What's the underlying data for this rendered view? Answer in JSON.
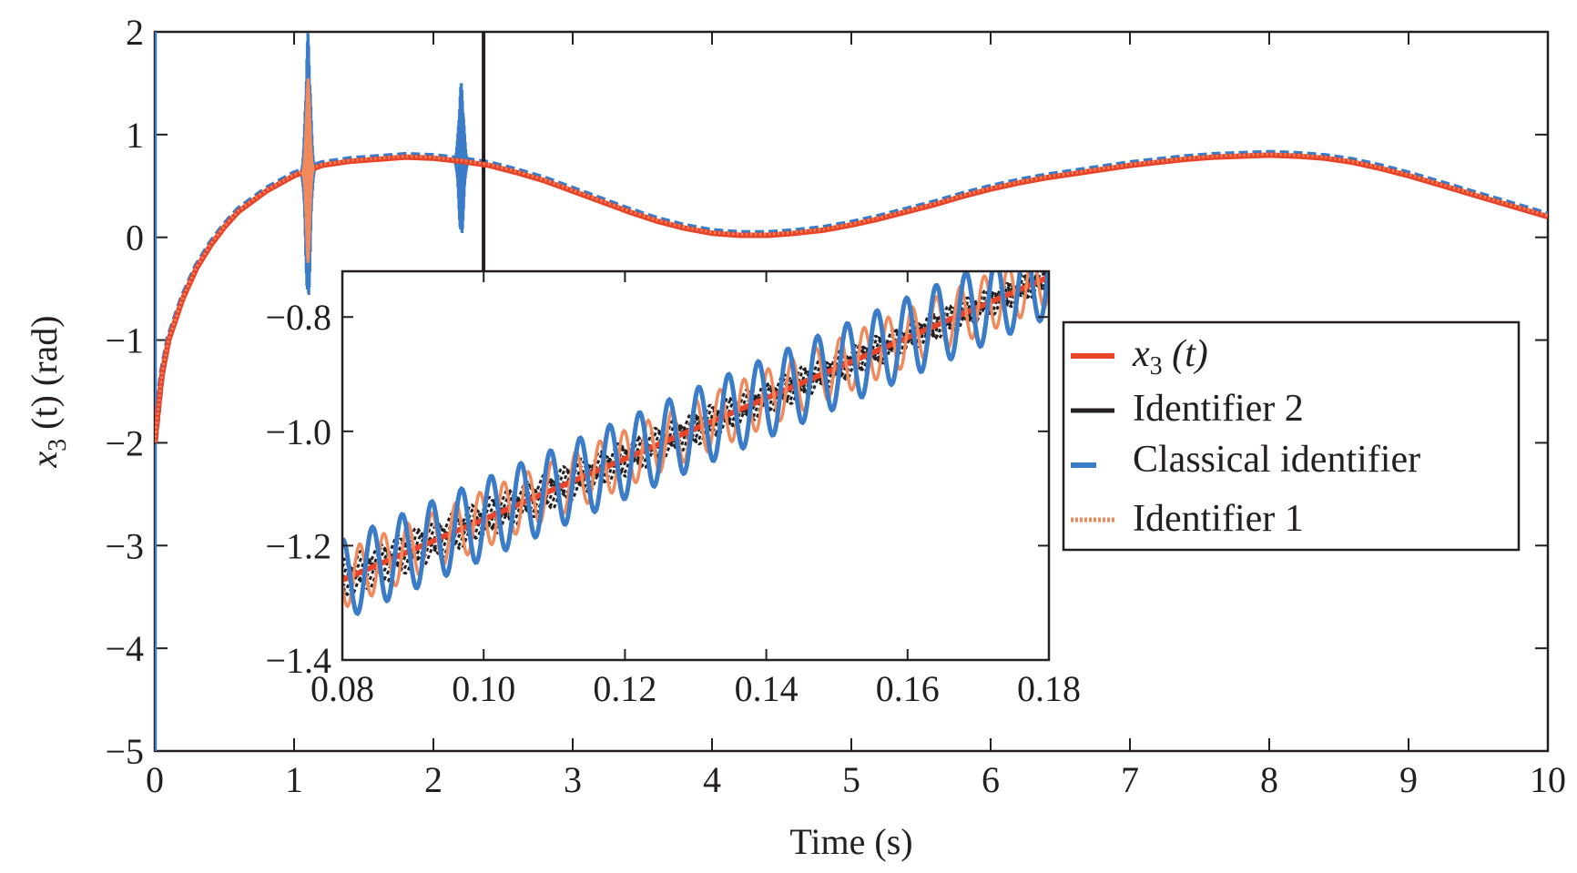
{
  "chart_data": {
    "type": "line",
    "main": {
      "xlabel": "Time (s)",
      "ylabel_var": "x",
      "ylabel_sub": "3",
      "ylabel_rest": " (t) (rad)",
      "xlim": [
        0,
        10
      ],
      "ylim": [
        -5,
        2
      ],
      "xticks": [
        0,
        1,
        2,
        3,
        4,
        5,
        6,
        7,
        8,
        9,
        10
      ],
      "xtick_labels": [
        "0",
        "1",
        "2",
        "3",
        "4",
        "5",
        "6",
        "7",
        "8",
        "9",
        "10"
      ],
      "yticks": [
        -5,
        -4,
        -3,
        -2,
        -1,
        0,
        1,
        2
      ],
      "ytick_labels": [
        "−5",
        "−4",
        "−3",
        "−2",
        "−1",
        "0",
        "1",
        "2"
      ],
      "grid": false
    },
    "inset": {
      "xlim": [
        0.08,
        0.18
      ],
      "ylim": [
        -1.4,
        -0.72
      ],
      "xticks": [
        0.08,
        0.1,
        0.12,
        0.14,
        0.16,
        0.18
      ],
      "xtick_labels": [
        "0.08",
        "0.10",
        "0.12",
        "0.14",
        "0.16",
        "0.18"
      ],
      "yticks": [
        -1.4,
        -1.2,
        -1.0,
        -0.8
      ],
      "ytick_labels": [
        "−1.4",
        "−1.2",
        "−1.0",
        "−0.8"
      ]
    },
    "legend": {
      "placement": "center-right",
      "entries": [
        {
          "var": "x",
          "sub": "3",
          "rest": " (t)",
          "color": "#e8442a",
          "style": "solid"
        },
        {
          "label": "Identifier 2",
          "color": "#231f20",
          "style": "solid"
        },
        {
          "label": "Classical identifier",
          "color": "#3b7cc9",
          "style": "dashed"
        },
        {
          "label": "Identifier 1",
          "color": "#f08a5d",
          "style": "dotted"
        }
      ]
    },
    "series": [
      {
        "key": "x3",
        "color": "#e8442a",
        "x": [
          0,
          0.05,
          0.1,
          0.2,
          0.3,
          0.4,
          0.5,
          0.6,
          0.8,
          1.0,
          1.2,
          1.4,
          1.6,
          1.8,
          2.0,
          2.2,
          2.4,
          2.6,
          2.8,
          3.0,
          3.2,
          3.4,
          3.6,
          3.8,
          4.0,
          4.2,
          4.4,
          4.6,
          4.8,
          5.0,
          5.2,
          5.4,
          5.6,
          5.8,
          6.0,
          6.2,
          6.4,
          6.6,
          6.8,
          7.0,
          7.2,
          7.4,
          7.6,
          7.8,
          8.0,
          8.2,
          8.4,
          8.6,
          8.8,
          9.0,
          9.2,
          9.4,
          9.6,
          9.8,
          10.0
        ],
        "y": [
          -2.0,
          -1.35,
          -1.0,
          -0.6,
          -0.3,
          -0.08,
          0.1,
          0.25,
          0.45,
          0.6,
          0.7,
          0.74,
          0.76,
          0.78,
          0.77,
          0.74,
          0.7,
          0.63,
          0.55,
          0.45,
          0.35,
          0.25,
          0.16,
          0.09,
          0.04,
          0.02,
          0.02,
          0.04,
          0.07,
          0.12,
          0.18,
          0.25,
          0.32,
          0.4,
          0.47,
          0.53,
          0.58,
          0.62,
          0.66,
          0.7,
          0.73,
          0.76,
          0.78,
          0.79,
          0.8,
          0.79,
          0.77,
          0.73,
          0.67,
          0.6,
          0.52,
          0.44,
          0.36,
          0.28,
          0.2
        ]
      }
    ],
    "annotations": [
      {
        "label": "classical identifier burst",
        "x_center": 1.1,
        "y_min": -0.7,
        "y_max": 2.0
      },
      {
        "label": "classical identifier burst",
        "x_center": 2.2,
        "y_min": -0.05,
        "y_max": 1.5
      },
      {
        "label": "identifier 2 spike",
        "x": 2.36,
        "y_min": -0.45,
        "y_max": 2.0
      }
    ],
    "inset_series": [
      {
        "key": "x3",
        "color": "#e8442a",
        "x": [
          0.08,
          0.18
        ],
        "y": [
          -1.26,
          -0.73
        ]
      },
      {
        "key": "identifier2",
        "color": "#231f20",
        "band": 0.05,
        "amplitude": 0.012,
        "period": 0.0026
      },
      {
        "key": "classical",
        "color": "#3b7cc9",
        "amplitude": 0.07,
        "period": 0.0042
      },
      {
        "key": "identifier1",
        "color": "#f08a5d",
        "amplitude": 0.05,
        "period": 0.0034
      }
    ]
  }
}
